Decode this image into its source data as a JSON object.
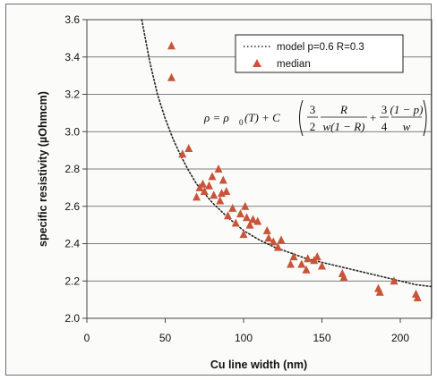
{
  "chart_data": {
    "type": "scatter",
    "title": "",
    "xlabel": "Cu line width (nm)",
    "ylabel": "specific resistivity (µOhmcm)",
    "xlim": [
      0,
      220
    ],
    "ylim": [
      2.0,
      3.6
    ],
    "xticks": [
      "0",
      "50",
      "100",
      "150",
      "200"
    ],
    "yticks": [
      "2.0",
      "2.2",
      "2.4",
      "2.6",
      "2.8",
      "3.0",
      "3.2",
      "3.4",
      "3.6"
    ],
    "grid": "horizontal",
    "legend_position": "top-right",
    "series": [
      {
        "name": "model p=0.6 R=0.3",
        "style": "dotted-line",
        "color": "#222222",
        "x": [
          35,
          40,
          45,
          50,
          55,
          60,
          65,
          70,
          80,
          90,
          100,
          110,
          120,
          130,
          140,
          150,
          160,
          170,
          180,
          190,
          200,
          210,
          220
        ],
        "y": [
          3.6,
          3.38,
          3.2,
          3.07,
          2.96,
          2.87,
          2.79,
          2.72,
          2.62,
          2.54,
          2.47,
          2.42,
          2.38,
          2.35,
          2.32,
          2.3,
          2.28,
          2.26,
          2.24,
          2.22,
          2.2,
          2.18,
          2.17
        ]
      },
      {
        "name": "median",
        "style": "triangle-markers",
        "color": "#c8553a",
        "points": [
          [
            54,
            3.46
          ],
          [
            54,
            3.29
          ],
          [
            61,
            2.88
          ],
          [
            65,
            2.91
          ],
          [
            70,
            2.65
          ],
          [
            72,
            2.7
          ],
          [
            74,
            2.72
          ],
          [
            75,
            2.68
          ],
          [
            78,
            2.71
          ],
          [
            80,
            2.76
          ],
          [
            81,
            2.66
          ],
          [
            84,
            2.8
          ],
          [
            85,
            2.63
          ],
          [
            86,
            2.67
          ],
          [
            87,
            2.74
          ],
          [
            89,
            2.68
          ],
          [
            90,
            2.55
          ],
          [
            93,
            2.59
          ],
          [
            95,
            2.51
          ],
          [
            98,
            2.56
          ],
          [
            100,
            2.45
          ],
          [
            101,
            2.6
          ],
          [
            102,
            2.54
          ],
          [
            104,
            2.5
          ],
          [
            106,
            2.53
          ],
          [
            109,
            2.52
          ],
          [
            115,
            2.47
          ],
          [
            116,
            2.43
          ],
          [
            119,
            2.41
          ],
          [
            122,
            2.38
          ],
          [
            124,
            2.42
          ],
          [
            130,
            2.29
          ],
          [
            132,
            2.33
          ],
          [
            137,
            2.29
          ],
          [
            140,
            2.26
          ],
          [
            141,
            2.32
          ],
          [
            145,
            2.31
          ],
          [
            147,
            2.33
          ],
          [
            150,
            2.28
          ],
          [
            163,
            2.24
          ],
          [
            164,
            2.22
          ],
          [
            186,
            2.16
          ],
          [
            187,
            2.14
          ],
          [
            196,
            2.2
          ],
          [
            210,
            2.13
          ],
          [
            211,
            2.11
          ]
        ]
      }
    ],
    "annotation": {
      "lhs": "ρ = ρ",
      "sub": "0",
      "mid": "(T) + C",
      "frac1_num": "3",
      "frac1_den": "2",
      "frac2_num": "R",
      "frac2_den": "w(1 − R)",
      "plus": "+",
      "frac3_num": "3",
      "frac3_den": "4",
      "frac4_num": "(1 − p)",
      "frac4_den": "w"
    }
  }
}
